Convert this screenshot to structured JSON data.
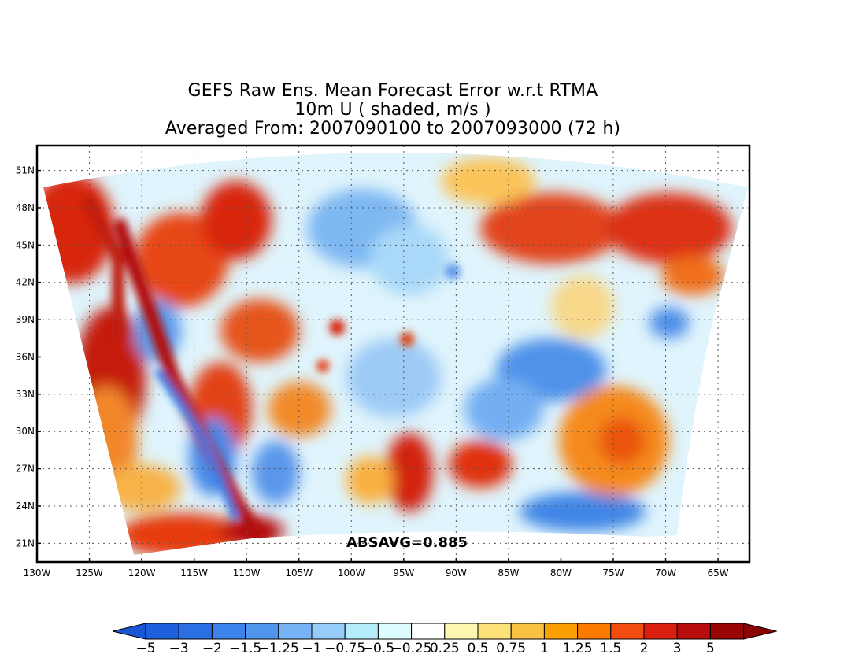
{
  "title": {
    "line1": "GEFS Raw Ens. Mean Forecast Error w.r.t RTMA",
    "line2": "10m U ( shaded, m/s )",
    "line3": "Averaged From: 2007090100 to 2007093000 (72 h)"
  },
  "map": {
    "lon_range": [
      -130,
      -62
    ],
    "lat_range": [
      19.5,
      53
    ],
    "lon_ticks": [
      {
        "value": -130,
        "label": "130W"
      },
      {
        "value": -125,
        "label": "125W"
      },
      {
        "value": -120,
        "label": "120W"
      },
      {
        "value": -115,
        "label": "115W"
      },
      {
        "value": -110,
        "label": "110W"
      },
      {
        "value": -105,
        "label": "105W"
      },
      {
        "value": -100,
        "label": "100W"
      },
      {
        "value": -95,
        "label": "95W"
      },
      {
        "value": -90,
        "label": "90W"
      },
      {
        "value": -85,
        "label": "85W"
      },
      {
        "value": -80,
        "label": "80W"
      },
      {
        "value": -75,
        "label": "75W"
      },
      {
        "value": -70,
        "label": "70W"
      },
      {
        "value": -65,
        "label": "65W"
      }
    ],
    "lat_ticks": [
      {
        "value": 21,
        "label": "21N"
      },
      {
        "value": 24,
        "label": "24N"
      },
      {
        "value": 27,
        "label": "27N"
      },
      {
        "value": 30,
        "label": "30N"
      },
      {
        "value": 33,
        "label": "33N"
      },
      {
        "value": 36,
        "label": "36N"
      },
      {
        "value": 39,
        "label": "39N"
      },
      {
        "value": 42,
        "label": "42N"
      },
      {
        "value": 45,
        "label": "45N"
      },
      {
        "value": 48,
        "label": "48N"
      },
      {
        "value": 51,
        "label": "51N"
      }
    ],
    "grid": true,
    "absavg_label": "ABSAVG=0.885"
  },
  "colorbar": {
    "labels": [
      "−5",
      "−3",
      "−2",
      "−1.5",
      "−1.25",
      "−1",
      "−0.75",
      "−0.5",
      "−0.25",
      "0.25",
      "0.5",
      "0.75",
      "1",
      "1.25",
      "1.5",
      "2",
      "3",
      "5"
    ],
    "colors": [
      "#1e5fdc",
      "#2a6fe4",
      "#3c82ec",
      "#5096ee",
      "#75b3f4",
      "#96cdf8",
      "#b4ecfa",
      "#dcfcfd",
      "#ffffff",
      "#fdf6b0",
      "#fde27a",
      "#fbc142",
      "#fba000",
      "#fb7a00",
      "#f34c10",
      "#db1f0f",
      "#b80d0d",
      "#9c0505"
    ],
    "low_color": "#1a55d4",
    "high_color": "#8a0303"
  }
}
